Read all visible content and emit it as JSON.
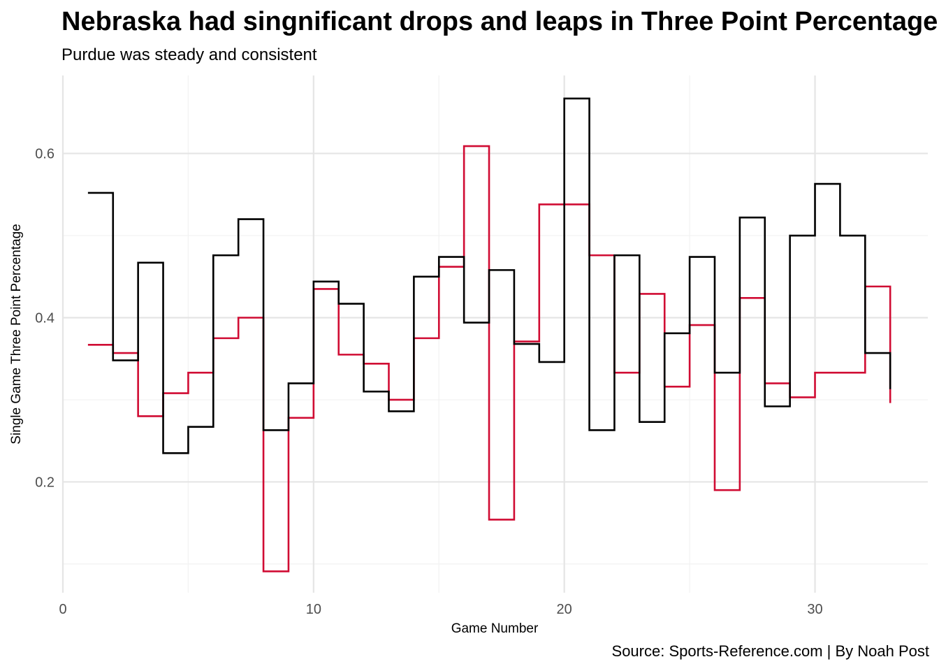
{
  "chart_data": {
    "type": "line",
    "step": "hv",
    "title": "Nebraska had singnificant drops and leaps in Three Point Percentage",
    "subtitle": "Purdue was steady and consistent",
    "caption": "Source: Sports-Reference.com | By Noah Post",
    "xlabel": "Game Number",
    "ylabel": "Single Game Three Point Percentage",
    "xlim": [
      0,
      34.5
    ],
    "ylim": [
      0.065,
      0.695
    ],
    "xticks": [
      0,
      10,
      20,
      30
    ],
    "yticks": [
      0.2,
      0.4,
      0.6
    ],
    "grid": true,
    "legend": "none",
    "x": [
      1,
      2,
      3,
      4,
      5,
      6,
      7,
      8,
      9,
      10,
      11,
      12,
      13,
      14,
      15,
      16,
      17,
      18,
      19,
      20,
      21,
      22,
      23,
      24,
      25,
      26,
      27,
      28,
      29,
      30,
      31,
      32,
      33
    ],
    "series": [
      {
        "color": "#d00c33",
        "values": [
          0.367,
          0.357,
          0.28,
          0.308,
          0.333,
          0.375,
          0.4,
          0.091,
          0.278,
          0.435,
          0.355,
          0.344,
          0.3,
          0.375,
          0.462,
          0.609,
          0.154,
          0.371,
          0.538,
          0.538,
          0.476,
          0.333,
          0.429,
          0.316,
          0.391,
          0.19,
          0.424,
          0.32,
          0.303,
          0.333,
          0.333,
          0.438,
          0.296
        ]
      },
      {
        "color": "#000000",
        "values": [
          0.552,
          0.348,
          0.467,
          0.235,
          0.267,
          0.476,
          0.52,
          0.263,
          0.32,
          0.444,
          0.417,
          0.31,
          0.286,
          0.45,
          0.474,
          0.394,
          0.458,
          0.368,
          0.346,
          0.667,
          0.263,
          0.476,
          0.273,
          0.381,
          0.474,
          0.333,
          0.522,
          0.292,
          0.5,
          0.563,
          0.5,
          0.357,
          0.313
        ]
      }
    ]
  }
}
